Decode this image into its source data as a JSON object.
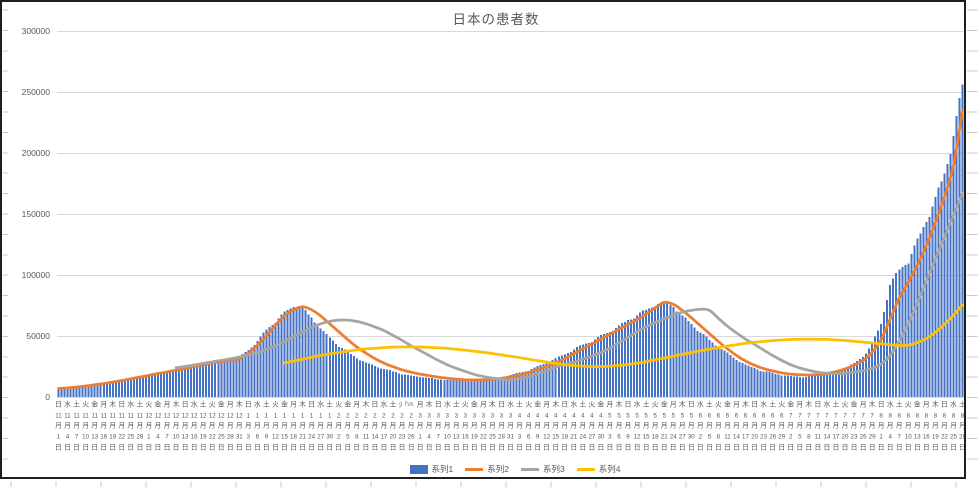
{
  "frame": {
    "background": "#FFFFFF",
    "border_color": "#1f1f1f"
  },
  "title": {
    "text": "日本の患者数",
    "color": "#595959"
  },
  "legend": {
    "items": [
      {
        "label": "系列1",
        "marker": "bar",
        "color": "#4472C4"
      },
      {
        "label": "系列2",
        "marker": "line",
        "color": "#ED7D31"
      },
      {
        "label": "系列3",
        "marker": "line",
        "color": "#A5A5A5"
      },
      {
        "label": "系列4",
        "marker": "line",
        "color": "#FFC000"
      }
    ]
  },
  "stray_text": {
    "text": "ha"
  },
  "colors": {
    "gridline": "#D9D9D9",
    "axis_text": "#595959",
    "worksheet_tick": "#c9c9c9"
  },
  "chart_data": {
    "type": "combo (bar + line)",
    "title": "日本の患者数",
    "xlabel": "",
    "ylabel": "",
    "ylim": [
      0,
      300000
    ],
    "y_ticks": [
      0,
      50000,
      100000,
      150000,
      200000,
      250000,
      300000
    ],
    "gridlines": "horizontal",
    "legend_position": "bottom",
    "x_start_date": "2020-11-01",
    "x_label_every_days": 3,
    "category_format": "weekday|month|day",
    "month_suffix": "月",
    "day_suffix": "日",
    "categories": [
      "日|11|1",
      "水|11|4",
      "土|11|7",
      "火|11|10",
      "金|11|13",
      "月|11|16",
      "木|11|19",
      "日|11|22",
      "水|11|25",
      "土|11|28",
      "火|12|1",
      "金|12|4",
      "月|12|7",
      "木|12|10",
      "日|12|13",
      "水|12|16",
      "土|12|19",
      "火|12|22",
      "金|12|25",
      "月|12|28",
      "木|12|31",
      "日|1|3",
      "水|1|6",
      "土|1|9",
      "火|1|12",
      "金|1|15",
      "月|1|18",
      "木|1|21",
      "日|1|24",
      "水|1|27",
      "土|1|30",
      "火|2|2",
      "金|2|5",
      "月|2|8",
      "木|2|11",
      "日|2|14",
      "水|2|17",
      "土|2|20",
      "火|2|23",
      "金|2|26",
      "月|3|1",
      "木|3|4",
      "日|3|7",
      "水|3|10",
      "土|3|13",
      "火|3|16",
      "金|3|19",
      "月|3|22",
      "木|3|25",
      "日|3|28",
      "水|3|31",
      "土|4|3",
      "火|4|6",
      "金|4|9",
      "月|4|12",
      "木|4|15",
      "日|4|18",
      "水|4|21",
      "土|4|24",
      "火|4|27",
      "金|4|30",
      "月|5|3",
      "木|5|6",
      "日|5|9",
      "水|5|12",
      "土|5|15",
      "火|5|18",
      "金|5|21",
      "月|5|24",
      "木|5|27",
      "日|5|30",
      "水|6|2",
      "土|6|5",
      "火|6|8",
      "金|6|11",
      "月|6|14",
      "木|6|17",
      "日|6|20",
      "水|6|23",
      "土|6|26",
      "火|6|29",
      "金|7|2",
      "月|7|5",
      "木|7|8",
      "日|7|11",
      "水|7|14",
      "土|7|17",
      "火|7|20",
      "金|7|23",
      "月|7|26",
      "木|7|29",
      "日|8|1",
      "水|8|4",
      "土|8|7",
      "火|8|10",
      "金|8|13",
      "月|8|16",
      "木|8|19",
      "日|8|22",
      "水|8|25",
      "土|8|28"
    ],
    "series": [
      {
        "name": "系列1",
        "type": "bar",
        "color": "#4472C4",
        "values": [
          7500,
          8000,
          9000,
          9500,
          10500,
          11500,
          13000,
          14500,
          15500,
          17000,
          18500,
          20000,
          21000,
          22500,
          23500,
          25500,
          27000,
          28500,
          29000,
          30000,
          33000,
          38500,
          46000,
          55000,
          62000,
          69000,
          74500,
          72500,
          65000,
          56000,
          48500,
          42000,
          36500,
          32000,
          28000,
          25500,
          23000,
          21000,
          19000,
          17500,
          16500,
          15500,
          14500,
          14000,
          13800,
          13500,
          13800,
          14300,
          15000,
          16500,
          18000,
          20000,
          22000,
          25000,
          28000,
          31500,
          35000,
          39000,
          43000,
          46000,
          50000,
          54000,
          58000,
          63000,
          67000,
          71000,
          76000,
          77000,
          74500,
          66000,
          60000,
          53000,
          46500,
          41000,
          36000,
          30500,
          26500,
          23800,
          21000,
          19500,
          18000,
          17000,
          16500,
          16500,
          17500,
          19000,
          21000,
          24000,
          27500,
          33000,
          43000,
          60000,
          92000,
          104000,
          112000,
          128000,
          145000,
          162000,
          183000,
          214000,
          255000
        ]
      },
      {
        "name": "系列2",
        "type": "line",
        "color": "#ED7D31",
        "values": [
          7000,
          7500,
          8200,
          9000,
          10000,
          11000,
          12200,
          13500,
          15000,
          16300,
          17800,
          19200,
          20500,
          22000,
          23200,
          24800,
          26300,
          27800,
          29000,
          30000,
          31500,
          36000,
          42500,
          50000,
          59000,
          66500,
          71500,
          74000,
          71500,
          66500,
          60000,
          53500,
          47000,
          41000,
          36000,
          31500,
          27800,
          24800,
          22300,
          20300,
          18800,
          17500,
          16300,
          15400,
          14700,
          14200,
          14000,
          14100,
          14500,
          15300,
          16500,
          18000,
          20000,
          22500,
          25000,
          28000,
          31500,
          35500,
          39500,
          43500,
          47500,
          51500,
          55500,
          59500,
          63500,
          68000,
          73000,
          77500,
          76000,
          71000,
          65000,
          58500,
          52000,
          45500,
          39500,
          34000,
          29500,
          26000,
          23300,
          21300,
          19800,
          18800,
          18200,
          18000,
          18400,
          19300,
          20800,
          23000,
          26000,
          30000,
          36500,
          47000,
          64000,
          81000,
          94000,
          108000,
          124000,
          143000,
          164000,
          190000,
          235000
        ]
      },
      {
        "name": "系列3",
        "type": "line",
        "color": "#A5A5A5",
        "values": [
          null,
          null,
          null,
          null,
          null,
          null,
          null,
          null,
          null,
          null,
          null,
          null,
          null,
          24000,
          25000,
          26200,
          27500,
          28800,
          30000,
          31300,
          32800,
          34500,
          36500,
          39000,
          42000,
          45500,
          49500,
          53500,
          57000,
          60000,
          62000,
          63000,
          63000,
          62000,
          60000,
          57500,
          54500,
          50500,
          46500,
          42000,
          38000,
          34000,
          30000,
          26500,
          23500,
          21000,
          18500,
          16800,
          15500,
          14500,
          14000,
          15000,
          16500,
          19000,
          21500,
          24500,
          26500,
          28500,
          31000,
          33500,
          36500,
          40000,
          44500,
          49000,
          53500,
          57500,
          61000,
          64000,
          67000,
          69500,
          71000,
          72000,
          71000,
          64500,
          58000,
          52500,
          47500,
          43000,
          38500,
          34000,
          30000,
          26500,
          23800,
          21800,
          20300,
          19500,
          19200,
          19500,
          20300,
          21500,
          23500,
          27000,
          34000,
          46000,
          60000,
          77000,
          95000,
          113000,
          131000,
          149000,
          167000
        ]
      },
      {
        "name": "系列4",
        "type": "line",
        "color": "#FFC000",
        "values": [
          null,
          null,
          null,
          null,
          null,
          null,
          null,
          null,
          null,
          null,
          null,
          null,
          null,
          null,
          null,
          null,
          null,
          null,
          null,
          null,
          null,
          null,
          null,
          null,
          null,
          28000,
          29500,
          31000,
          32500,
          34000,
          35300,
          36500,
          37600,
          38600,
          39400,
          40000,
          40500,
          40900,
          41100,
          41100,
          41000,
          40700,
          40300,
          39800,
          39100,
          38400,
          37500,
          36600,
          35600,
          34500,
          33400,
          32200,
          31000,
          29800,
          28600,
          27500,
          26500,
          25800,
          25300,
          25000,
          25000,
          25300,
          25900,
          26700,
          27700,
          29000,
          30400,
          31900,
          33400,
          34900,
          36400,
          37900,
          39300,
          40600,
          41800,
          42900,
          43900,
          44800,
          45600,
          46200,
          46700,
          47100,
          47400,
          47500,
          47400,
          47200,
          46800,
          46300,
          45700,
          45000,
          44300,
          43500,
          42800,
          42300,
          42500,
          44500,
          48000,
          53000,
          59500,
          67000,
          75500
        ]
      }
    ]
  }
}
